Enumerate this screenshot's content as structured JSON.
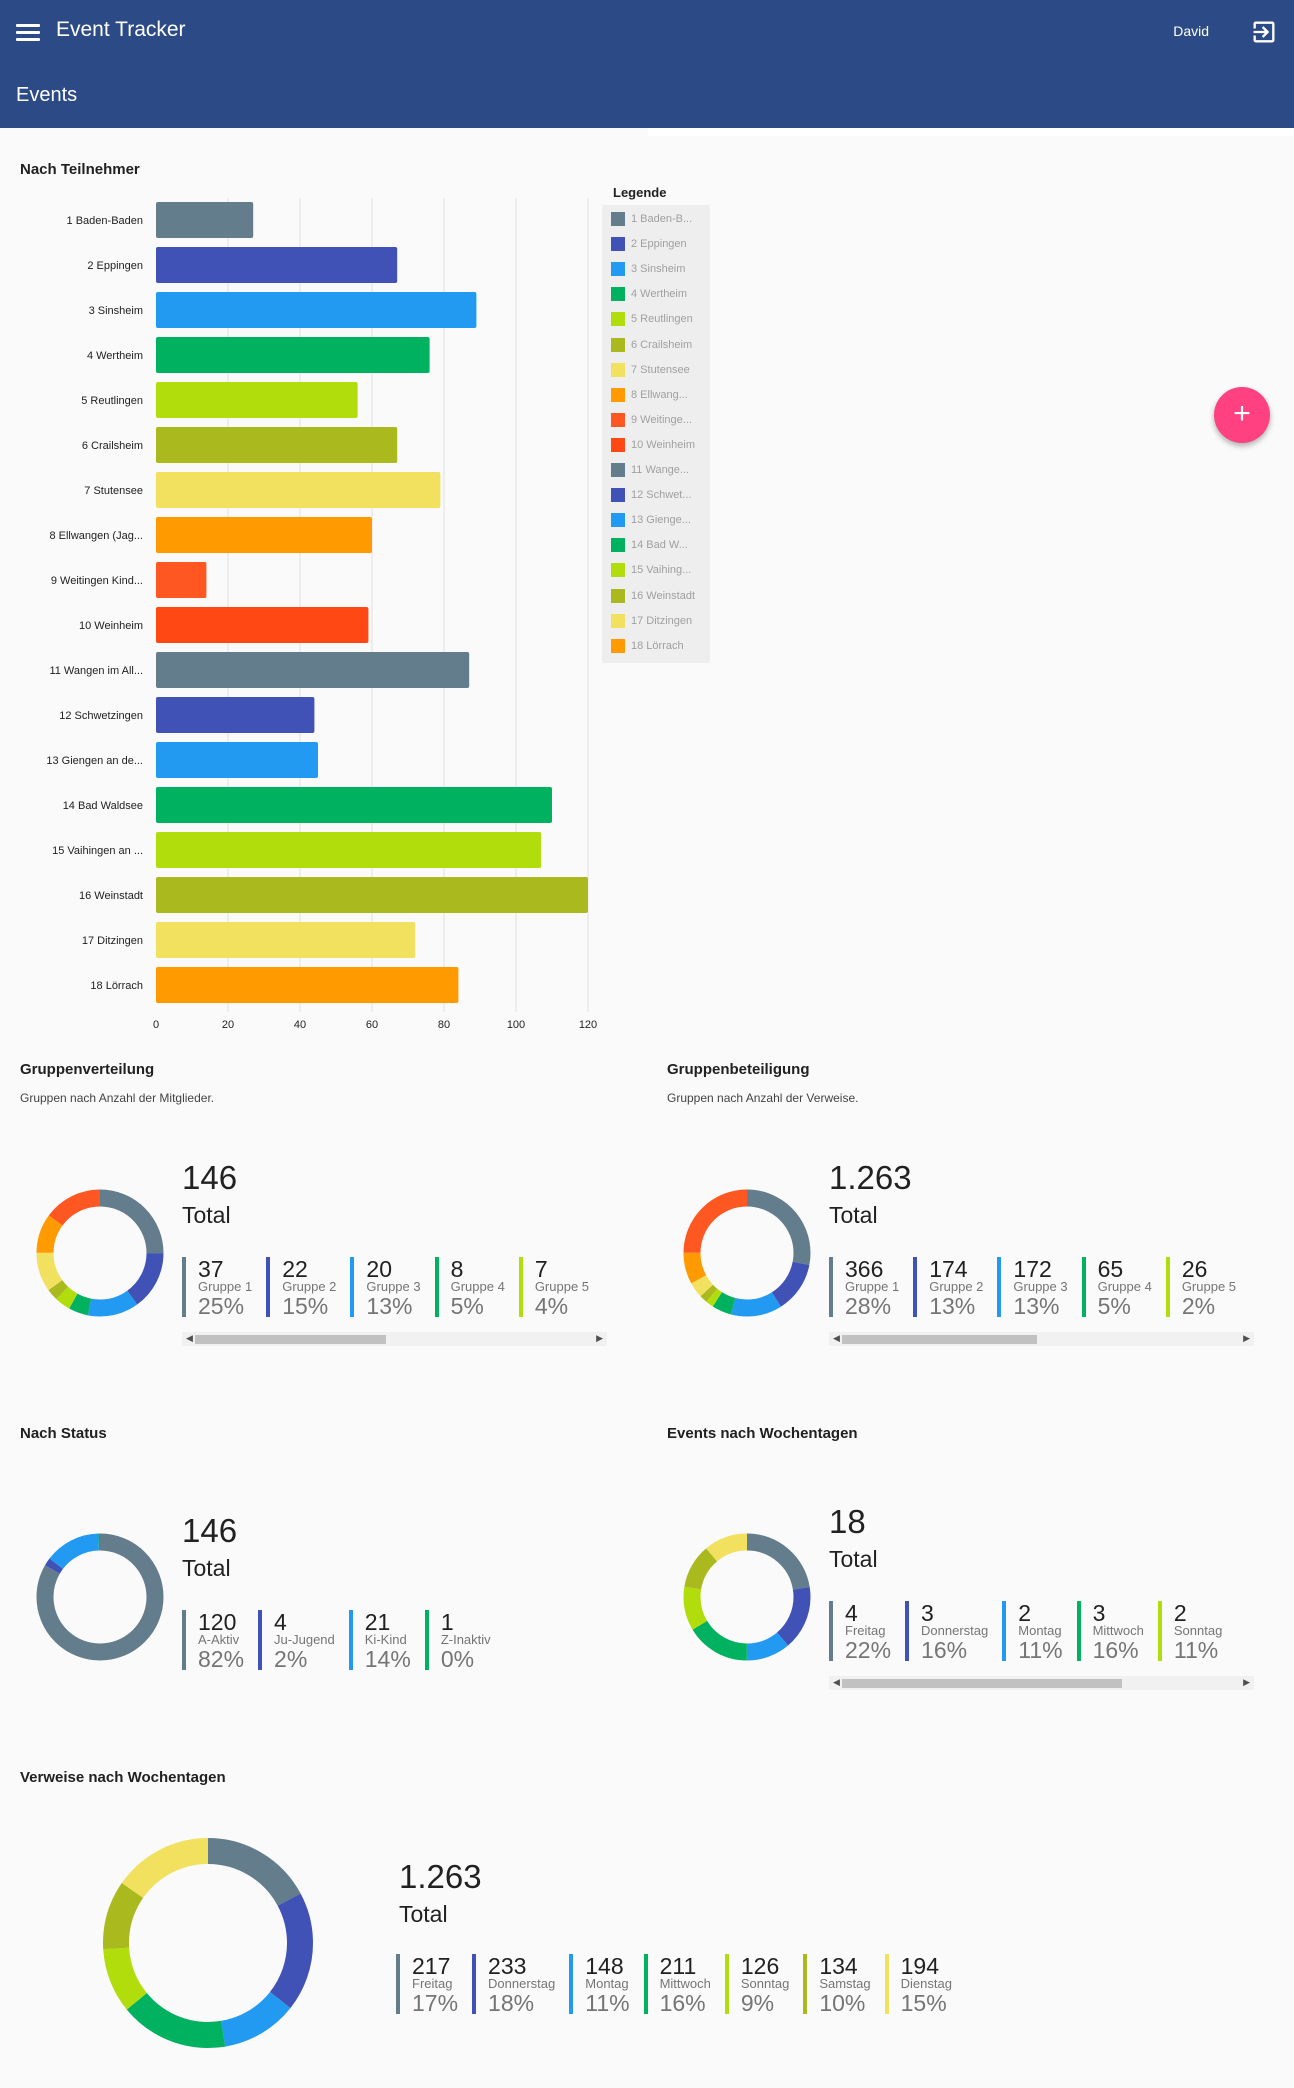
{
  "appbar": {
    "title": "Event Tracker",
    "user": "David",
    "subtitle": "Events",
    "color": "#2c4a86"
  },
  "fab": {
    "label": "+",
    "color": "#ff4081"
  },
  "sections": {
    "teilnehmer": "Nach Teilnehmer",
    "gruppenverteilung": "Gruppenverteilung",
    "gruppenverteilung_sub": "Gruppen nach Anzahl der Mitglieder.",
    "gruppenbeteiligung": "Gruppenbeteiligung",
    "gruppenbeteiligung_sub": "Gruppen nach Anzahl der Verweise.",
    "status": "Nach Status",
    "wochentage": "Events nach Wochentagen",
    "verweise": "Verweise nach Wochentagen"
  },
  "chart_data": [
    {
      "type": "bar",
      "orientation": "horizontal",
      "title": "Nach Teilnehmer",
      "legend_title": "Legende",
      "legend_position": "right",
      "categories": [
        "1 Baden-Baden",
        "2 Eppingen",
        "3 Sinsheim",
        "4 Wertheim",
        "5 Reutlingen",
        "6 Crailsheim",
        "7 Stutensee",
        "8 Ellwangen (Jag...",
        "9 Weitingen Kind...",
        "10 Weinheim",
        "11 Wangen im All...",
        "12 Schwetzingen",
        "13 Giengen an de...",
        "14 Bad Waldsee",
        "15 Vaihingen an ...",
        "16 Weinstadt",
        "17 Ditzingen",
        "18 Lörrach"
      ],
      "legend_labels": [
        "1 Baden-B...",
        "2 Eppingen",
        "3 Sinsheim",
        "4 Wertheim",
        "5 Reutlingen",
        "6 Crailsheim",
        "7 Stutensee",
        "8 Ellwang...",
        "9 Weitinge...",
        "10 Weinheim",
        "11 Wange...",
        "12 Schwet...",
        "13 Gienge...",
        "14 Bad W...",
        "15 Vaihing...",
        "16 Weinstadt",
        "17 Ditzingen",
        "18 Lörrach"
      ],
      "values": [
        27,
        67,
        89,
        76,
        56,
        67,
        79,
        60,
        14,
        59,
        87,
        44,
        45,
        110,
        107,
        120,
        72,
        84
      ],
      "colors": [
        "#647d8c",
        "#4052b5",
        "#229af2",
        "#00b25f",
        "#b2dd0c",
        "#a9b91e",
        "#f2e15f",
        "#ff9a00",
        "#ff5722",
        "#ff4814",
        "#647d8c",
        "#4052b5",
        "#229af2",
        "#00b25f",
        "#b2dd0c",
        "#a9b91e",
        "#f2e15f",
        "#ff9a00"
      ],
      "xlim": [
        0,
        120
      ],
      "xticks": [
        0,
        20,
        40,
        60,
        80,
        100,
        120
      ],
      "grid": true
    },
    {
      "type": "pie",
      "title": "Gruppenverteilung",
      "total": "146",
      "total_label": "Total",
      "items": [
        {
          "value": "37",
          "name": "Gruppe 1",
          "pct": "25%",
          "color": "#647d8c"
        },
        {
          "value": "22",
          "name": "Gruppe 2",
          "pct": "15%",
          "color": "#4052b5"
        },
        {
          "value": "20",
          "name": "Gruppe 3",
          "pct": "13%",
          "color": "#229af2"
        },
        {
          "value": "8",
          "name": "Gruppe 4",
          "pct": "5%",
          "color": "#00b25f"
        },
        {
          "value": "7",
          "name": "Gruppe 5",
          "pct": "4%",
          "color": "#b2dd0c"
        }
      ],
      "segments": [
        25,
        15,
        13,
        5,
        4,
        3,
        10,
        10,
        15
      ],
      "segment_colors": [
        "#647d8c",
        "#4052b5",
        "#229af2",
        "#00b25f",
        "#b2dd0c",
        "#a9b91e",
        "#f2e15f",
        "#ff9a00",
        "#ff5722"
      ],
      "scroll": {
        "thumb_start": 0.03,
        "thumb_end": 0.48
      }
    },
    {
      "type": "pie",
      "title": "Gruppenbeteiligung",
      "total": "1.263",
      "total_label": "Total",
      "items": [
        {
          "value": "366",
          "name": "Gruppe 1",
          "pct": "28%",
          "color": "#647d8c"
        },
        {
          "value": "174",
          "name": "Gruppe 2",
          "pct": "13%",
          "color": "#4052b5"
        },
        {
          "value": "172",
          "name": "Gruppe 3",
          "pct": "13%",
          "color": "#229af2"
        },
        {
          "value": "65",
          "name": "Gruppe 4",
          "pct": "5%",
          "color": "#00b25f"
        },
        {
          "value": "26",
          "name": "Gruppe 5",
          "pct": "2%",
          "color": "#b2dd0c"
        }
      ],
      "segments": [
        28,
        13,
        13,
        5,
        2,
        2,
        4,
        8,
        25
      ],
      "segment_colors": [
        "#647d8c",
        "#4052b5",
        "#229af2",
        "#00b25f",
        "#b2dd0c",
        "#a9b91e",
        "#f2e15f",
        "#ff9a00",
        "#ff5722"
      ],
      "scroll": {
        "thumb_start": 0.03,
        "thumb_end": 0.49
      }
    },
    {
      "type": "pie",
      "title": "Nach Status",
      "total": "146",
      "total_label": "Total",
      "items": [
        {
          "value": "120",
          "name": "A-Aktiv",
          "pct": "82%",
          "color": "#647d8c"
        },
        {
          "value": "4",
          "name": "Ju-Jugend",
          "pct": "2%",
          "color": "#4052b5"
        },
        {
          "value": "21",
          "name": "Ki-Kind",
          "pct": "14%",
          "color": "#229af2"
        },
        {
          "value": "1",
          "name": "Z-Inaktiv",
          "pct": "0%",
          "color": "#00b25f"
        }
      ],
      "segments": [
        82,
        2,
        14,
        0.5
      ],
      "segment_colors": [
        "#647d8c",
        "#4052b5",
        "#229af2",
        "#00b25f"
      ]
    },
    {
      "type": "pie",
      "title": "Events nach Wochentagen",
      "total": "18",
      "total_label": "Total",
      "items": [
        {
          "value": "4",
          "name": "Freitag",
          "pct": "22%",
          "color": "#647d8c"
        },
        {
          "value": "3",
          "name": "Donnerstag",
          "pct": "16%",
          "color": "#4052b5"
        },
        {
          "value": "2",
          "name": "Montag",
          "pct": "11%",
          "color": "#229af2"
        },
        {
          "value": "3",
          "name": "Mittwoch",
          "pct": "16%",
          "color": "#00b25f"
        },
        {
          "value": "2",
          "name": "Sonntag",
          "pct": "11%",
          "color": "#b2dd0c"
        }
      ],
      "segments": [
        22,
        16,
        11,
        16,
        11,
        11,
        11
      ],
      "segment_colors": [
        "#647d8c",
        "#4052b5",
        "#229af2",
        "#00b25f",
        "#b2dd0c",
        "#a9b91e",
        "#f2e15f"
      ],
      "scroll": {
        "thumb_start": 0.03,
        "thumb_end": 0.69
      }
    },
    {
      "type": "pie",
      "title": "Verweise nach Wochentagen",
      "total": "1.263",
      "total_label": "Total",
      "items": [
        {
          "value": "217",
          "name": "Freitag",
          "pct": "17%",
          "color": "#647d8c"
        },
        {
          "value": "233",
          "name": "Donnerstag",
          "pct": "18%",
          "color": "#4052b5"
        },
        {
          "value": "148",
          "name": "Montag",
          "pct": "11%",
          "color": "#229af2"
        },
        {
          "value": "211",
          "name": "Mittwoch",
          "pct": "16%",
          "color": "#00b25f"
        },
        {
          "value": "126",
          "name": "Sonntag",
          "pct": "9%",
          "color": "#b2dd0c"
        },
        {
          "value": "134",
          "name": "Samstag",
          "pct": "10%",
          "color": "#a9b91e"
        },
        {
          "value": "194",
          "name": "Dienstag",
          "pct": "15%",
          "color": "#f2e15f"
        }
      ],
      "segments": [
        217,
        233,
        148,
        211,
        126,
        134,
        194
      ],
      "segment_colors": [
        "#647d8c",
        "#4052b5",
        "#229af2",
        "#00b25f",
        "#b2dd0c",
        "#a9b91e",
        "#f2e15f"
      ]
    }
  ]
}
